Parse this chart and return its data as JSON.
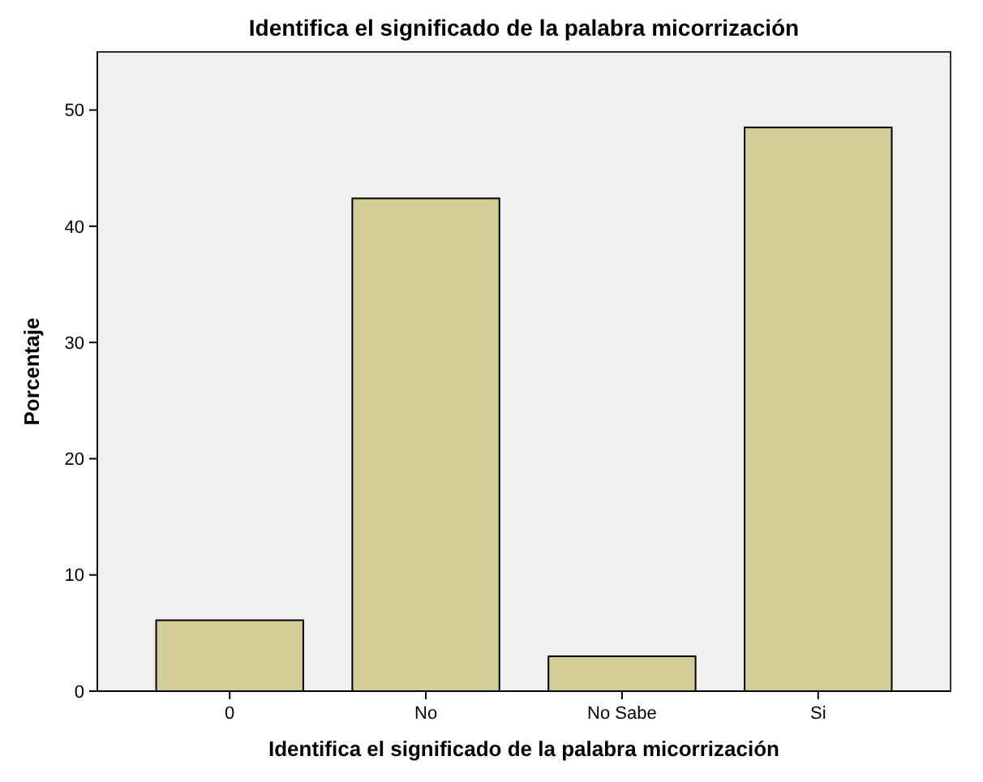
{
  "chart_data": {
    "type": "bar",
    "title": "Identifica el significado de la palabra micorrización",
    "xlabel": "Identifica el significado de la palabra micorrización",
    "ylabel": "Porcentaje",
    "categories": [
      "0",
      "No",
      "No Sabe",
      "Si"
    ],
    "values": [
      6.1,
      42.4,
      3.0,
      48.5
    ],
    "color": "#d3ce97",
    "ylim": [
      0,
      55
    ],
    "yticks": [
      0,
      10,
      20,
      30,
      40,
      50
    ]
  }
}
